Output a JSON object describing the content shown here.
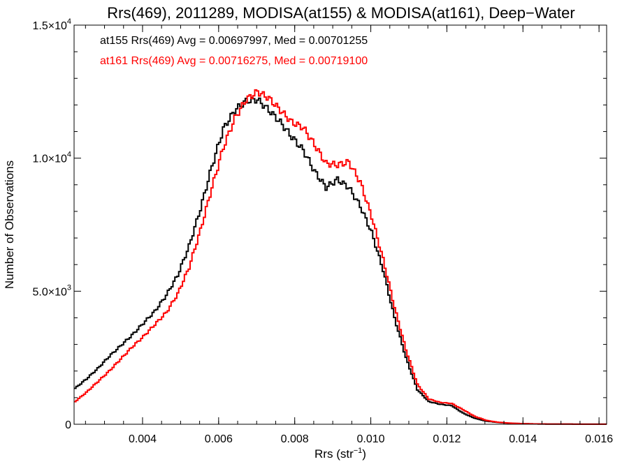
{
  "chart_data": {
    "type": "line",
    "title": "Rrs(469), 2011289, MODISA(at155) & MODISA(at161), Deep−Water",
    "xlabel": "Rrs (str",
    "xlabel_sup": "−1",
    "xlabel_close": ")",
    "ylabel": "Number of Observations",
    "xlim": [
      0.0022,
      0.0162
    ],
    "ylim": [
      0,
      15000
    ],
    "grid": false,
    "legend_position": "top-left",
    "x_ticks": [
      {
        "value": 0.004,
        "label": "0.004"
      },
      {
        "value": 0.006,
        "label": "0.006"
      },
      {
        "value": 0.008,
        "label": "0.008"
      },
      {
        "value": 0.01,
        "label": "0.010"
      },
      {
        "value": 0.012,
        "label": "0.012"
      },
      {
        "value": 0.014,
        "label": "0.014"
      },
      {
        "value": 0.016,
        "label": "0.016"
      }
    ],
    "y_ticks": [
      {
        "value": 0,
        "mant": "0",
        "exp": ""
      },
      {
        "value": 5000,
        "mant": "5.0×10",
        "exp": "3"
      },
      {
        "value": 10000,
        "mant": "1.0×10",
        "exp": "4"
      },
      {
        "value": 15000,
        "mant": "1.5×10",
        "exp": "4"
      }
    ],
    "series": [
      {
        "name": "at155 Rrs(469) Avg = 0.00697997, Med = 0.00701255",
        "color": "#000000",
        "x": [
          0.0022,
          0.0025,
          0.0028,
          0.0031,
          0.0034,
          0.0037,
          0.004,
          0.0043,
          0.0046,
          0.0049,
          0.0052,
          0.0055,
          0.0058,
          0.0061,
          0.0064,
          0.0067,
          0.007,
          0.0073,
          0.0076,
          0.0079,
          0.0082,
          0.0085,
          0.0088,
          0.0091,
          0.0094,
          0.0097,
          0.01,
          0.0103,
          0.0106,
          0.0109,
          0.0112,
          0.0115,
          0.0118,
          0.0121,
          0.0124,
          0.0127,
          0.013,
          0.0133,
          0.0136,
          0.0139,
          0.0142,
          0.0145,
          0.015,
          0.0155,
          0.0162
        ],
        "values": [
          1350,
          1700,
          2100,
          2550,
          2950,
          3350,
          3800,
          4250,
          4850,
          5600,
          6700,
          8100,
          9700,
          11100,
          11800,
          12150,
          12200,
          11800,
          11350,
          10800,
          10300,
          9500,
          8900,
          9200,
          8900,
          8200,
          7200,
          5800,
          4000,
          2500,
          1300,
          850,
          750,
          700,
          420,
          230,
          120,
          70,
          40,
          25,
          15,
          10,
          5,
          3,
          2
        ]
      },
      {
        "name": "at161 Rrs(469) Avg = 0.00716275, Med = 0.00719100",
        "color": "#ff0000",
        "x": [
          0.0022,
          0.0025,
          0.0028,
          0.0031,
          0.0034,
          0.0037,
          0.004,
          0.0043,
          0.0046,
          0.0049,
          0.0052,
          0.0055,
          0.0058,
          0.0061,
          0.0064,
          0.0067,
          0.007,
          0.0073,
          0.0076,
          0.0079,
          0.0082,
          0.0085,
          0.0088,
          0.0091,
          0.0094,
          0.0097,
          0.01,
          0.0103,
          0.0106,
          0.0109,
          0.0112,
          0.0115,
          0.0118,
          0.0121,
          0.0124,
          0.0127,
          0.013,
          0.0133,
          0.0136,
          0.0139,
          0.0142,
          0.0145,
          0.015,
          0.0155,
          0.0162
        ],
        "values": [
          850,
          1200,
          1600,
          2000,
          2450,
          2900,
          3300,
          3750,
          4200,
          4900,
          5900,
          7300,
          8900,
          10400,
          11500,
          12200,
          12500,
          12250,
          11800,
          11350,
          11150,
          10500,
          9800,
          9750,
          9850,
          9100,
          7800,
          6200,
          4400,
          2800,
          1500,
          950,
          820,
          780,
          550,
          300,
          150,
          80,
          45,
          25,
          15,
          10,
          5,
          3,
          2
        ]
      }
    ]
  }
}
